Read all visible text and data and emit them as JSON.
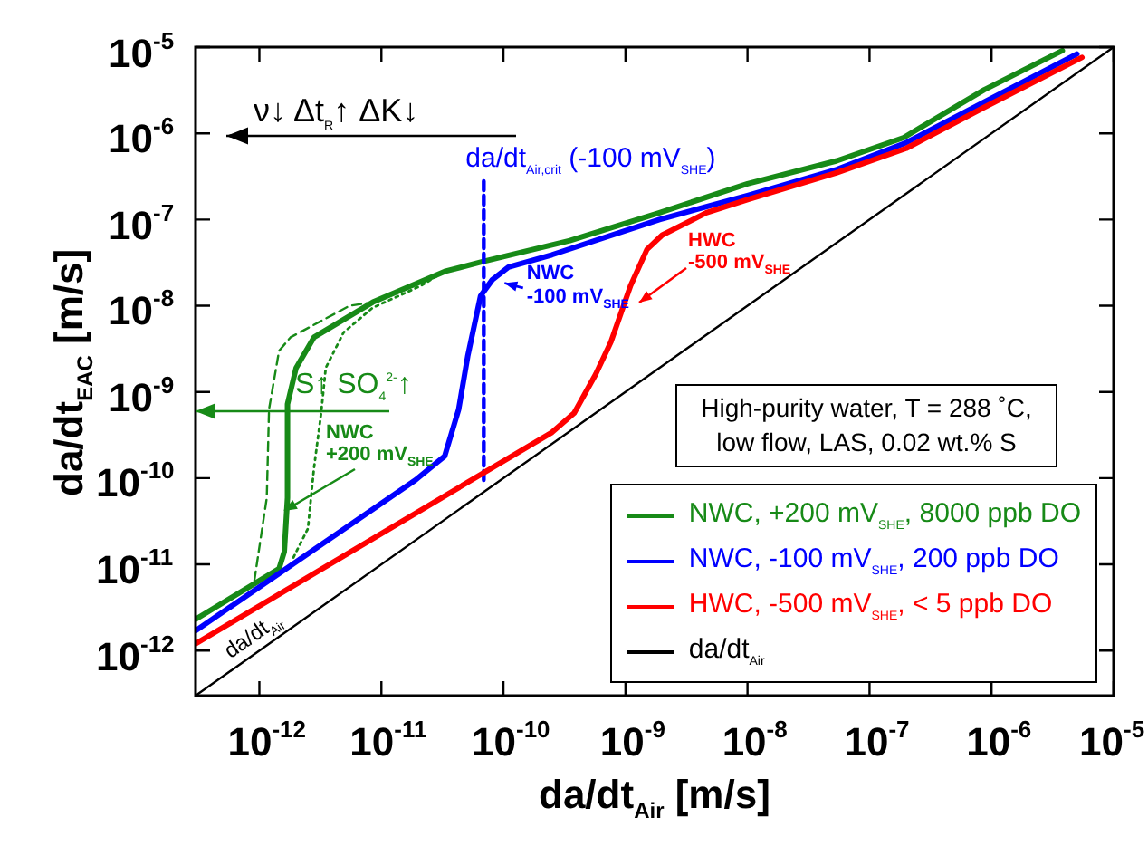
{
  "chart_data": {
    "type": "line",
    "xlabel": "da/dt$_{Air}$  [m/s]",
    "ylabel": "da/dt$_{EAC}$  [m/s]",
    "log": "xy",
    "grid": false,
    "legend": "bottom right",
    "xlim": [
      3e-13,
      1e-05
    ],
    "ylim": [
      3e-13,
      1e-05
    ],
    "xticks": [
      {
        "value": 1e-12,
        "label": "10$^{-12}$"
      },
      {
        "value": 1e-11,
        "label": "10$^{-11}$"
      },
      {
        "value": 1e-10,
        "label": "10$^{-10}$"
      },
      {
        "value": 1e-09,
        "label": "10$^{-9}$"
      },
      {
        "value": 1e-08,
        "label": "10$^{-8}$"
      },
      {
        "value": 1e-07,
        "label": "10$^{-7}$"
      },
      {
        "value": 1e-06,
        "label": "10$^{-6}$"
      },
      {
        "value": 1e-05,
        "label": "10$^{-5}$"
      }
    ],
    "yticks": [
      {
        "value": 1e-12,
        "label": "10$^{-12}$"
      },
      {
        "value": 1e-11,
        "label": "10$^{-11}$"
      },
      {
        "value": 1e-10,
        "label": "10$^{-10}$"
      },
      {
        "value": 1e-09,
        "label": "10$^{-9}$"
      },
      {
        "value": 1e-08,
        "label": "10$^{-8}$"
      },
      {
        "value": 1e-07,
        "label": "10$^{-7}$"
      },
      {
        "value": 1e-06,
        "label": "10$^{-6}$"
      },
      {
        "value": 1e-05,
        "label": "10$^{-5}$"
      }
    ],
    "series": [
      {
        "name": "NWC, +200 mV$_{SHE}$, 8000 ppb DO",
        "color": "#178a17",
        "line_style": "solid",
        "x": [
          3e-13,
          1.45e-12,
          1.6e-12,
          1.7e-12,
          1.7e-12,
          2e-12,
          2.8e-12,
          8.5e-12,
          3.3e-11,
          6.5e-11,
          3.5e-10,
          1.9e-09,
          1e-08,
          5.4e-08,
          1.9e-07,
          8.7e-07,
          3.8e-06
        ],
        "values": [
          2.3e-12,
          8.9e-12,
          1.4e-11,
          5.9e-11,
          7.2e-10,
          1.9e-09,
          4.3e-09,
          1.1e-08,
          2.5e-08,
          3.2e-08,
          5.7e-08,
          1.2e-07,
          2.6e-07,
          4.8e-07,
          8.9e-07,
          3.2e-06,
          9.1e-06
        ]
      },
      {
        "color": "#178a17",
        "line_style": "dashed",
        "x": [
          9.1e-13,
          1.15e-12,
          1.2e-12,
          1.45e-12,
          1.8e-12,
          5.5e-12,
          8.5e-12
        ],
        "values": [
          6.5e-12,
          5.9e-11,
          6.3e-10,
          3e-09,
          4.3e-09,
          1e-08,
          1.1e-08
        ]
      },
      {
        "color": "#178a17",
        "line_style": "dotted",
        "x": [
          1.9e-12,
          2.5e-12,
          2.8e-12,
          3.2e-12,
          3.5e-12,
          4.9e-12,
          8.5e-12,
          2.1e-11,
          3.3e-11
        ],
        "values": [
          1.2e-11,
          2.6e-11,
          1.3e-10,
          5.5e-10,
          1.9e-09,
          4.9e-09,
          9.5e-09,
          1.7e-08,
          2.5e-08
        ]
      },
      {
        "name": "NWC, -100 mV$_{SHE}$, 200 ppb DO",
        "color": "#0000ff",
        "line_style": "solid",
        "x": [
          3e-13,
          1.9e-11,
          3.3e-11,
          4.3e-11,
          5.1e-11,
          6.5e-11,
          8.1e-11,
          1.1e-10,
          2.5e-10,
          1.9e-09,
          1e-08,
          5.4e-08,
          2e-07,
          8.7e-07,
          5e-06
        ],
        "values": [
          1.7e-12,
          9.5e-11,
          1.8e-10,
          6.3e-10,
          2.6e-09,
          1.3e-08,
          2e-08,
          2.8e-08,
          3.9e-08,
          1e-07,
          1.9e-07,
          3.8e-07,
          7.8e-07,
          2.3e-06,
          8.3e-06
        ]
      },
      {
        "color": "#0000ff",
        "line_style": "dashed",
        "x": [
          6.9e-11,
          6.9e-11
        ],
        "values": [
          9.5e-11,
          3e-07
        ]
      },
      {
        "name": "HWC, -500 mV$_{SHE}$, < 5 ppb DO",
        "color": "#ff0000",
        "line_style": "solid",
        "x": [
          3e-13,
          2.5e-10,
          3.8e-10,
          5.7e-10,
          7.6e-10,
          1.1e-09,
          1.5e-09,
          2e-09,
          4.6e-09,
          1e-08,
          5.4e-08,
          2e-07,
          8.7e-07,
          5.5e-06
        ],
        "values": [
          1.2e-12,
          3.4e-10,
          5.7e-10,
          1.6e-09,
          3.8e-09,
          1.7e-08,
          4.5e-08,
          6.6e-08,
          1.2e-07,
          1.7e-07,
          3.5e-07,
          6.7e-07,
          2e-06,
          7.6e-06
        ]
      },
      {
        "name": "da/dt$_{Air}$",
        "color": "#000000",
        "line_style": "solid",
        "x": [
          3e-13,
          1e-05
        ],
        "values": [
          3e-13,
          1e-05
        ]
      }
    ],
    "annotations": [
      "ν↓    Δt$_{R}$↑    ΔK↓",
      {
        "text": "da/dt$_{Air,crit}$ (-100 mV$_{SHE}$)",
        "x": 6.9e-11,
        "y": 3e-07
      },
      {
        "text": "NWC\n-100 mV$_{SHE}$",
        "x": 8.1e-11,
        "y": 2e-08
      },
      "HWC\n-500 mV$_{SHE}$",
      "NWC\n+200 mV$_{SHE}$",
      "S↑ SO$_{4}$$^{2-}$↑",
      "High-purity water, T = 288 ˚C,\nlow flow, LAS, 0.02 wt.% S"
    ]
  }
}
